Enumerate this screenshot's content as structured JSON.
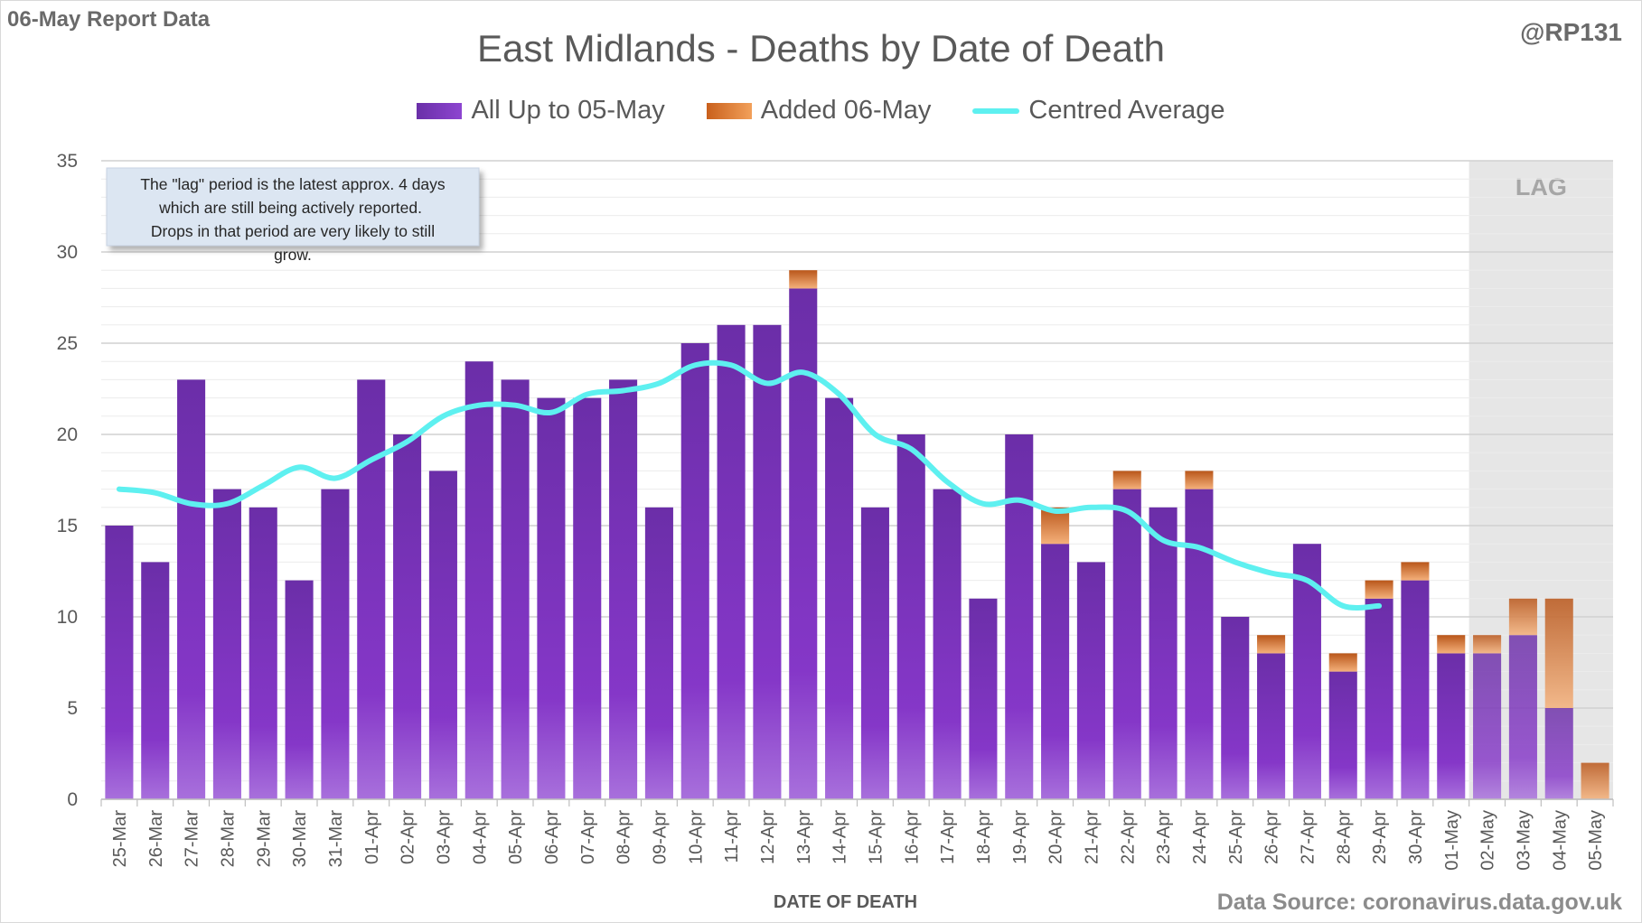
{
  "header": {
    "report_label": "06-May Report Data",
    "handle": "@RP131",
    "source": "Data Source: coronavirus.data.gov.uk"
  },
  "chart_data": {
    "type": "bar",
    "stacked": true,
    "title": "East Midlands - Deaths by Date of Death",
    "xlabel": "DATE OF DEATH",
    "ylabel": "",
    "ylim": [
      0,
      35
    ],
    "yticks": [
      0,
      5,
      10,
      15,
      20,
      25,
      30,
      35
    ],
    "grid": true,
    "legend_position": "top",
    "categories": [
      "25-Mar",
      "26-Mar",
      "27-Mar",
      "28-Mar",
      "29-Mar",
      "30-Mar",
      "31-Mar",
      "01-Apr",
      "02-Apr",
      "03-Apr",
      "04-Apr",
      "05-Apr",
      "06-Apr",
      "07-Apr",
      "08-Apr",
      "09-Apr",
      "10-Apr",
      "11-Apr",
      "12-Apr",
      "13-Apr",
      "14-Apr",
      "15-Apr",
      "16-Apr",
      "17-Apr",
      "18-Apr",
      "19-Apr",
      "20-Apr",
      "21-Apr",
      "22-Apr",
      "23-Apr",
      "24-Apr",
      "25-Apr",
      "26-Apr",
      "27-Apr",
      "28-Apr",
      "29-Apr",
      "30-Apr",
      "01-May",
      "02-May",
      "03-May",
      "04-May",
      "05-May"
    ],
    "series": [
      {
        "name": "All Up to 05-May",
        "kind": "bar",
        "color": "#7d3cc0",
        "values": [
          15,
          13,
          23,
          17,
          16,
          12,
          17,
          23,
          20,
          18,
          24,
          23,
          22,
          22,
          23,
          16,
          25,
          26,
          26,
          28,
          22,
          16,
          20,
          17,
          11,
          20,
          14,
          13,
          17,
          16,
          17,
          10,
          8,
          14,
          7,
          11,
          12,
          8,
          8,
          9,
          5,
          0
        ]
      },
      {
        "name": "Added 06-May",
        "kind": "bar",
        "color": "#e07a30",
        "values": [
          0,
          0,
          0,
          0,
          0,
          0,
          0,
          0,
          0,
          0,
          0,
          0,
          0,
          0,
          0,
          0,
          0,
          0,
          0,
          1,
          0,
          0,
          0,
          0,
          0,
          0,
          2,
          0,
          1,
          0,
          1,
          0,
          1,
          0,
          1,
          1,
          1,
          1,
          1,
          2,
          6,
          2
        ]
      },
      {
        "name": "Centred Average",
        "kind": "line",
        "color": "#5ef0f0",
        "values": [
          17.0,
          16.8,
          16.2,
          16.2,
          17.2,
          18.2,
          17.6,
          18.6,
          19.6,
          21.0,
          21.6,
          21.6,
          21.2,
          22.2,
          22.4,
          22.8,
          23.8,
          23.8,
          22.8,
          23.4,
          22.2,
          20.0,
          19.2,
          17.4,
          16.2,
          16.4,
          15.8,
          16.0,
          15.8,
          14.2,
          13.8,
          13.0,
          12.4,
          12.0,
          10.6,
          10.6,
          null,
          null,
          null,
          null,
          null,
          null
        ]
      }
    ],
    "shaded_region": {
      "label": "LAG",
      "from": "02-May",
      "to": "05-May",
      "color": "#e6e6e6"
    },
    "annotation": "The \"lag\" period is the latest approx. 4 days which are still being actively reported.  Drops in that period are very likely to still grow."
  }
}
